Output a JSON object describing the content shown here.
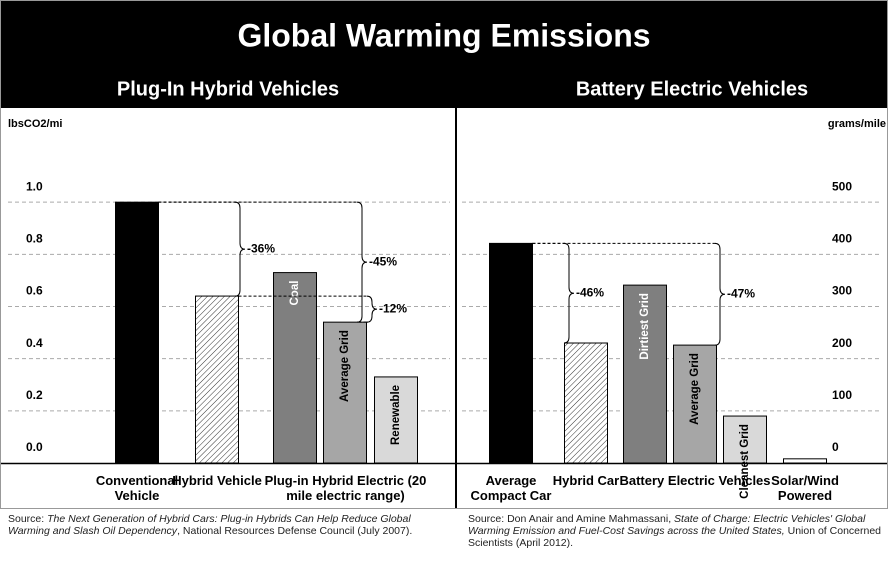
{
  "title": "Global Warming Emissions",
  "chart_data": [
    {
      "type": "bar",
      "title": "Plug-In Hybrid Vehicles",
      "y_label": "lbsCO2/mi",
      "categories": [
        "Conventional Vehicle",
        "Hybrid Vehicle",
        null,
        null,
        null
      ],
      "bar_labels": [
        null,
        null,
        "Coal",
        "Average Grid",
        "Renewable"
      ],
      "group_label": "Plug-in Hybrid Electric (20 mile electric range)",
      "values": [
        1.0,
        0.64,
        0.73,
        0.54,
        0.33
      ],
      "colors": [
        "#000000",
        "hatched",
        "#7f7f7f",
        "#a6a6a6",
        "#d9d9d9"
      ],
      "ylim": [
        0,
        1.2
      ],
      "yticks": [
        {
          "value": 0,
          "label": "0.0"
        },
        0.2,
        0.4,
        0.6,
        0.8,
        {
          "value": 1,
          "label": "1.0"
        }
      ],
      "grid": true,
      "annotations": [
        "-36%",
        "-45%",
        "-12%"
      ],
      "source": {
        "prefix": "Source: ",
        "italic": "The Next Generation of Hybrid Cars: Plug-in Hybrids Can Help Reduce Global Warming and Slash Oil Dependency",
        "suffix": ", National Resources Defense Council (July 2007)."
      }
    },
    {
      "type": "bar",
      "title": "Battery Electric Vehicles",
      "y_label": "grams/mile",
      "categories": [
        "Average Compact Car",
        "Hybrid Car",
        null,
        null,
        null,
        "Solar/Wind Powered"
      ],
      "bar_labels": [
        null,
        null,
        "Dirtiest Grid",
        "Average Grid",
        "Cleanest Grid",
        null
      ],
      "group_label": "Battery Electric Vehicles",
      "values": [
        421,
        230,
        341,
        226,
        90,
        8
      ],
      "colors": [
        "#000000",
        "hatched",
        "#7f7f7f",
        "#a6a6a6",
        "#d9d9d9",
        "#ffffff"
      ],
      "ylim": [
        0,
        600
      ],
      "yticks": [
        0,
        100,
        200,
        300,
        400,
        500
      ],
      "grid": true,
      "annotations": [
        "-46%",
        "-47%"
      ],
      "source": {
        "prefix": "Source:  Don Anair and Amine Mahmassani, ",
        "italic": "State of Charge: Electric Vehicles' Global Warming Emission and Fuel-Cost Savings across the United States,",
        "suffix": " Union of Concerned Scientists (April 2012)."
      }
    }
  ]
}
